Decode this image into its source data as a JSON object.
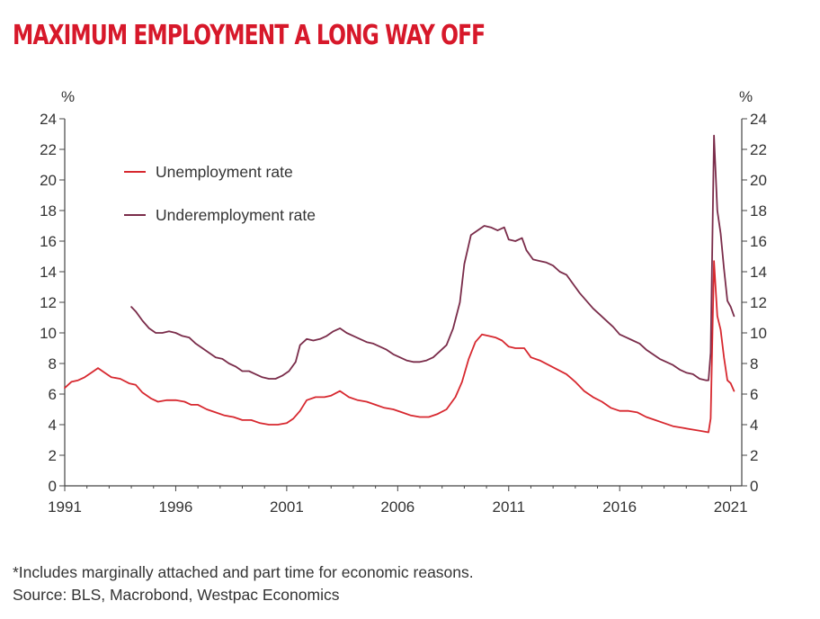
{
  "header": {
    "title": "MAXIMUM EMPLOYMENT A LONG WAY OFF"
  },
  "footer": {
    "note": "*Includes marginally attached and part time for economic reasons.",
    "source": "Source: BLS, Macrobond, Westpac Economics"
  },
  "colors": {
    "title": "#d7182a",
    "unemployment": "#d7282f",
    "underemployment": "#7a2c4a",
    "axis": "#444444"
  },
  "chart_data": {
    "type": "line",
    "ylabel_left": "%",
    "ylabel_right": "%",
    "ylim": [
      0,
      24
    ],
    "yticks": [
      0,
      2,
      4,
      6,
      8,
      10,
      12,
      14,
      16,
      18,
      20,
      22,
      24
    ],
    "xlim": [
      1991,
      2021.5
    ],
    "xticks": [
      1991,
      1996,
      2001,
      2006,
      2011,
      2016,
      2021
    ],
    "xtick_labels": [
      "1991",
      "1996",
      "2001",
      "2006",
      "2011",
      "2016",
      "2021"
    ],
    "grid": false,
    "legend": "top-left",
    "series": [
      {
        "name": "Unemployment rate",
        "color": "#d7282f",
        "points": [
          [
            1991.0,
            6.4
          ],
          [
            1991.3,
            6.8
          ],
          [
            1991.6,
            6.9
          ],
          [
            1991.9,
            7.1
          ],
          [
            1992.2,
            7.4
          ],
          [
            1992.5,
            7.7
          ],
          [
            1992.8,
            7.4
          ],
          [
            1993.1,
            7.1
          ],
          [
            1993.5,
            7.0
          ],
          [
            1993.9,
            6.7
          ],
          [
            1994.2,
            6.6
          ],
          [
            1994.5,
            6.1
          ],
          [
            1994.9,
            5.7
          ],
          [
            1995.2,
            5.5
          ],
          [
            1995.6,
            5.6
          ],
          [
            1996.0,
            5.6
          ],
          [
            1996.4,
            5.5
          ],
          [
            1996.7,
            5.3
          ],
          [
            1997.0,
            5.3
          ],
          [
            1997.4,
            5.0
          ],
          [
            1997.8,
            4.8
          ],
          [
            1998.2,
            4.6
          ],
          [
            1998.6,
            4.5
          ],
          [
            1999.0,
            4.3
          ],
          [
            1999.4,
            4.3
          ],
          [
            1999.8,
            4.1
          ],
          [
            2000.2,
            4.0
          ],
          [
            2000.6,
            4.0
          ],
          [
            2001.0,
            4.1
          ],
          [
            2001.3,
            4.4
          ],
          [
            2001.6,
            4.9
          ],
          [
            2001.9,
            5.6
          ],
          [
            2002.3,
            5.8
          ],
          [
            2002.7,
            5.8
          ],
          [
            2003.0,
            5.9
          ],
          [
            2003.4,
            6.2
          ],
          [
            2003.8,
            5.8
          ],
          [
            2004.2,
            5.6
          ],
          [
            2004.6,
            5.5
          ],
          [
            2005.0,
            5.3
          ],
          [
            2005.4,
            5.1
          ],
          [
            2005.8,
            5.0
          ],
          [
            2006.2,
            4.8
          ],
          [
            2006.6,
            4.6
          ],
          [
            2007.0,
            4.5
          ],
          [
            2007.4,
            4.5
          ],
          [
            2007.8,
            4.7
          ],
          [
            2008.2,
            5.0
          ],
          [
            2008.6,
            5.8
          ],
          [
            2008.9,
            6.8
          ],
          [
            2009.2,
            8.3
          ],
          [
            2009.5,
            9.4
          ],
          [
            2009.8,
            9.9
          ],
          [
            2010.1,
            9.8
          ],
          [
            2010.4,
            9.7
          ],
          [
            2010.7,
            9.5
          ],
          [
            2011.0,
            9.1
          ],
          [
            2011.3,
            9.0
          ],
          [
            2011.7,
            9.0
          ],
          [
            2012.0,
            8.4
          ],
          [
            2012.4,
            8.2
          ],
          [
            2012.8,
            7.9
          ],
          [
            2013.2,
            7.6
          ],
          [
            2013.6,
            7.3
          ],
          [
            2014.0,
            6.8
          ],
          [
            2014.4,
            6.2
          ],
          [
            2014.8,
            5.8
          ],
          [
            2015.2,
            5.5
          ],
          [
            2015.6,
            5.1
          ],
          [
            2016.0,
            4.9
          ],
          [
            2016.4,
            4.9
          ],
          [
            2016.8,
            4.8
          ],
          [
            2017.2,
            4.5
          ],
          [
            2017.6,
            4.3
          ],
          [
            2018.0,
            4.1
          ],
          [
            2018.4,
            3.9
          ],
          [
            2018.8,
            3.8
          ],
          [
            2019.2,
            3.7
          ],
          [
            2019.6,
            3.6
          ],
          [
            2020.0,
            3.5
          ],
          [
            2020.1,
            4.4
          ],
          [
            2020.25,
            14.7
          ],
          [
            2020.4,
            11.1
          ],
          [
            2020.55,
            10.2
          ],
          [
            2020.7,
            8.4
          ],
          [
            2020.85,
            6.9
          ],
          [
            2021.0,
            6.7
          ],
          [
            2021.15,
            6.2
          ]
        ]
      },
      {
        "name": "Underemployment rate",
        "color": "#7a2c4a",
        "points": [
          [
            1994.0,
            11.7
          ],
          [
            1994.2,
            11.4
          ],
          [
            1994.5,
            10.8
          ],
          [
            1994.8,
            10.3
          ],
          [
            1995.1,
            10.0
          ],
          [
            1995.4,
            10.0
          ],
          [
            1995.7,
            10.1
          ],
          [
            1996.0,
            10.0
          ],
          [
            1996.3,
            9.8
          ],
          [
            1996.6,
            9.7
          ],
          [
            1996.9,
            9.3
          ],
          [
            1997.2,
            9.0
          ],
          [
            1997.5,
            8.7
          ],
          [
            1997.8,
            8.4
          ],
          [
            1998.1,
            8.3
          ],
          [
            1998.4,
            8.0
          ],
          [
            1998.7,
            7.8
          ],
          [
            1999.0,
            7.5
          ],
          [
            1999.3,
            7.5
          ],
          [
            1999.6,
            7.3
          ],
          [
            1999.9,
            7.1
          ],
          [
            2000.2,
            7.0
          ],
          [
            2000.5,
            7.0
          ],
          [
            2000.8,
            7.2
          ],
          [
            2001.1,
            7.5
          ],
          [
            2001.4,
            8.1
          ],
          [
            2001.6,
            9.2
          ],
          [
            2001.9,
            9.6
          ],
          [
            2002.2,
            9.5
          ],
          [
            2002.5,
            9.6
          ],
          [
            2002.8,
            9.8
          ],
          [
            2003.1,
            10.1
          ],
          [
            2003.4,
            10.3
          ],
          [
            2003.7,
            10.0
          ],
          [
            2004.0,
            9.8
          ],
          [
            2004.3,
            9.6
          ],
          [
            2004.6,
            9.4
          ],
          [
            2004.9,
            9.3
          ],
          [
            2005.2,
            9.1
          ],
          [
            2005.5,
            8.9
          ],
          [
            2005.8,
            8.6
          ],
          [
            2006.1,
            8.4
          ],
          [
            2006.4,
            8.2
          ],
          [
            2006.7,
            8.1
          ],
          [
            2007.0,
            8.1
          ],
          [
            2007.3,
            8.2
          ],
          [
            2007.6,
            8.4
          ],
          [
            2007.9,
            8.8
          ],
          [
            2008.2,
            9.2
          ],
          [
            2008.5,
            10.3
          ],
          [
            2008.8,
            12.0
          ],
          [
            2009.0,
            14.5
          ],
          [
            2009.3,
            16.4
          ],
          [
            2009.6,
            16.7
          ],
          [
            2009.9,
            17.0
          ],
          [
            2010.2,
            16.9
          ],
          [
            2010.5,
            16.7
          ],
          [
            2010.8,
            16.9
          ],
          [
            2011.0,
            16.1
          ],
          [
            2011.3,
            16.0
          ],
          [
            2011.6,
            16.2
          ],
          [
            2011.8,
            15.4
          ],
          [
            2012.1,
            14.8
          ],
          [
            2012.4,
            14.7
          ],
          [
            2012.7,
            14.6
          ],
          [
            2013.0,
            14.4
          ],
          [
            2013.3,
            14.0
          ],
          [
            2013.6,
            13.8
          ],
          [
            2013.9,
            13.2
          ],
          [
            2014.2,
            12.6
          ],
          [
            2014.5,
            12.1
          ],
          [
            2014.8,
            11.6
          ],
          [
            2015.1,
            11.2
          ],
          [
            2015.4,
            10.8
          ],
          [
            2015.7,
            10.4
          ],
          [
            2016.0,
            9.9
          ],
          [
            2016.3,
            9.7
          ],
          [
            2016.6,
            9.5
          ],
          [
            2016.9,
            9.3
          ],
          [
            2017.2,
            8.9
          ],
          [
            2017.5,
            8.6
          ],
          [
            2017.8,
            8.3
          ],
          [
            2018.1,
            8.1
          ],
          [
            2018.4,
            7.9
          ],
          [
            2018.7,
            7.6
          ],
          [
            2019.0,
            7.4
          ],
          [
            2019.3,
            7.3
          ],
          [
            2019.6,
            7.0
          ],
          [
            2019.9,
            6.9
          ],
          [
            2020.0,
            6.9
          ],
          [
            2020.1,
            8.7
          ],
          [
            2020.25,
            22.9
          ],
          [
            2020.4,
            18.0
          ],
          [
            2020.55,
            16.5
          ],
          [
            2020.7,
            14.2
          ],
          [
            2020.85,
            12.1
          ],
          [
            2021.0,
            11.7
          ],
          [
            2021.15,
            11.1
          ]
        ]
      }
    ]
  }
}
